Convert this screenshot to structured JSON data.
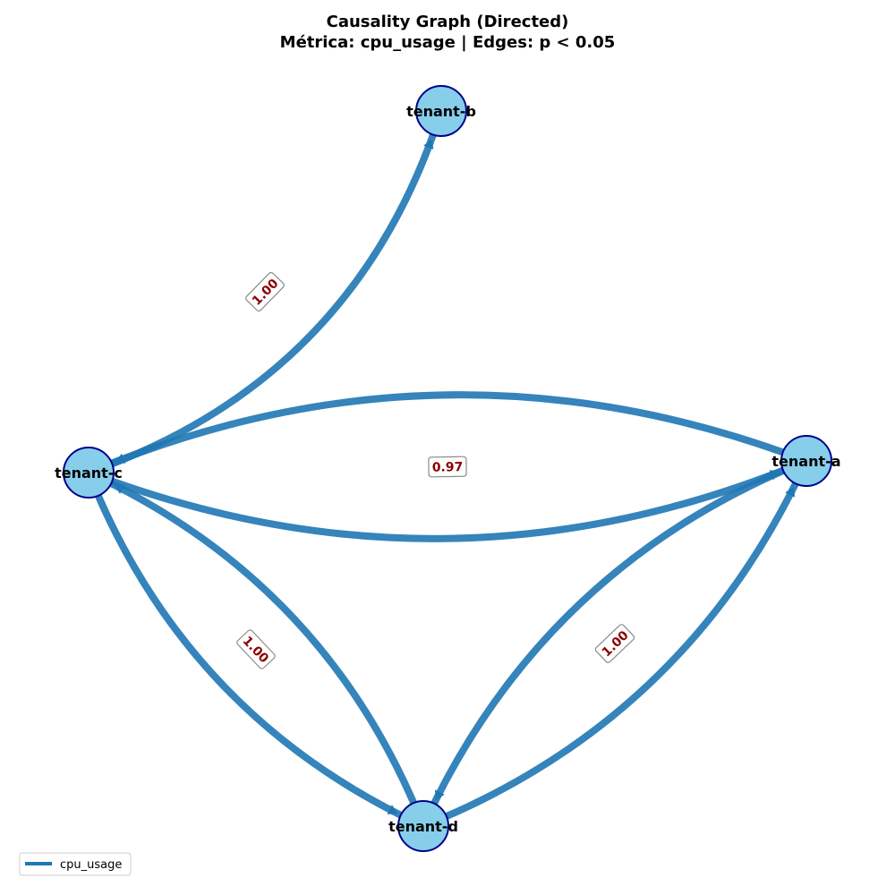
{
  "title": {
    "line1": "Causality Graph (Directed)",
    "line2": "Métrica: cpu_usage | Edges: p < 0.05"
  },
  "colors": {
    "edge": "#1f77b4",
    "node_fill": "#87ceeb",
    "node_stroke": "#00008b",
    "label_text": "#8b0000"
  },
  "nodes": [
    {
      "id": "tenant-a",
      "label": "tenant-a"
    },
    {
      "id": "tenant-b",
      "label": "tenant-b"
    },
    {
      "id": "tenant-c",
      "label": "tenant-c"
    },
    {
      "id": "tenant-d",
      "label": "tenant-d"
    }
  ],
  "edges": [
    {
      "source": "tenant-c",
      "target": "tenant-b",
      "value": "1.00"
    },
    {
      "source": "tenant-c",
      "target": "tenant-a",
      "value": "0.97"
    },
    {
      "source": "tenant-a",
      "target": "tenant-c",
      "value": ""
    },
    {
      "source": "tenant-c",
      "target": "tenant-d",
      "value": "1.00"
    },
    {
      "source": "tenant-d",
      "target": "tenant-c",
      "value": ""
    },
    {
      "source": "tenant-a",
      "target": "tenant-d",
      "value": "1.00"
    },
    {
      "source": "tenant-d",
      "target": "tenant-a",
      "value": ""
    }
  ],
  "legend": {
    "items": [
      {
        "label": "cpu_usage"
      }
    ]
  }
}
